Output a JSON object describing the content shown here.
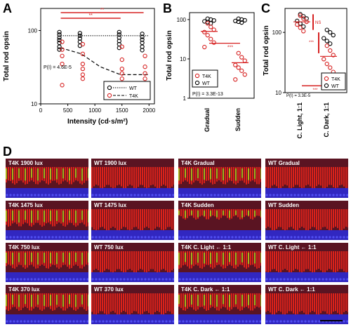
{
  "panels": {
    "a": {
      "letter": "A"
    },
    "b": {
      "letter": "B"
    },
    "c": {
      "letter": "C"
    },
    "d": {
      "letter": "D"
    }
  },
  "chart_data": [
    {
      "id": "A",
      "type": "scatter",
      "ylabel": "Total rod opsin",
      "xlabel": "Intensity (cd·s/m²)",
      "xticks": [
        0,
        500,
        1000,
        1500,
        2000
      ],
      "yticks": [
        "10",
        "100"
      ],
      "log_y": true,
      "xlim": [
        0,
        2100
      ],
      "ylim": [
        10,
        200
      ],
      "annotation": "P(I) = 4.6E-5",
      "sig_labels": [
        "**",
        "**"
      ],
      "legend": [
        {
          "name": "WT",
          "marker": "open-black",
          "line": "dotted"
        },
        {
          "name": "T4K",
          "marker": "open-red",
          "line": "dashed"
        }
      ],
      "series": [
        {
          "name": "WT",
          "x": [
            370,
            370,
            370,
            370,
            370,
            370,
            370,
            750,
            750,
            750,
            750,
            750,
            1475,
            1475,
            1475,
            1475,
            1475,
            1475,
            1900,
            1900,
            1900,
            1900,
            1900,
            1900
          ],
          "y": [
            95,
            88,
            80,
            74,
            68,
            60,
            55,
            92,
            85,
            78,
            70,
            62,
            95,
            88,
            80,
            72,
            65,
            58,
            90,
            82,
            75,
            68,
            60,
            54
          ]
        },
        {
          "name": "T4K",
          "x": [
            370,
            370,
            370,
            370,
            370,
            750,
            750,
            750,
            750,
            750,
            750,
            1475,
            1475,
            1475,
            1475,
            1475,
            1475,
            1900,
            1900,
            1900,
            1900,
            1900,
            1900
          ],
          "y": [
            70,
            55,
            45,
            35,
            18,
            65,
            48,
            35,
            30,
            25,
            22,
            60,
            40,
            30,
            26,
            22,
            18,
            45,
            32,
            26,
            22,
            19,
            17
          ]
        }
      ],
      "fit_lines": {
        "WT_level": 85,
        "T4K": [
          [
            370,
            58
          ],
          [
            750,
            48
          ],
          [
            1100,
            32
          ],
          [
            1475,
            25
          ],
          [
            2000,
            25
          ]
        ]
      }
    },
    {
      "id": "B",
      "type": "scatter",
      "ylabel": "Total rod opsin",
      "categories": [
        "Gradual",
        "Sudden"
      ],
      "yticks": [
        "1",
        "10",
        "100"
      ],
      "log_y": true,
      "ylim": [
        1,
        150
      ],
      "annotation": "P(I) = 3.3E-13",
      "sig_labels": [
        "***"
      ],
      "legend": [
        {
          "name": "T4K",
          "marker": "open-red"
        },
        {
          "name": "WT",
          "marker": "open-black"
        }
      ],
      "series": [
        {
          "name": "WT",
          "category": [
            "Gradual",
            "Gradual",
            "Gradual",
            "Gradual",
            "Gradual",
            "Gradual",
            "Sudden",
            "Sudden",
            "Sudden",
            "Sudden",
            "Sudden",
            "Sudden"
          ],
          "values": [
            105,
            100,
            95,
            90,
            86,
            80,
            105,
            100,
            96,
            92,
            88,
            84
          ]
        },
        {
          "name": "T4K",
          "category": [
            "Gradual",
            "Gradual",
            "Gradual",
            "Gradual",
            "Gradual",
            "Gradual",
            "Gradual",
            "Gradual",
            "Sudden",
            "Sudden",
            "Sudden",
            "Sudden",
            "Sudden",
            "Sudden",
            "Sudden",
            "Sudden"
          ],
          "values": [
            80,
            65,
            55,
            48,
            40,
            32,
            26,
            20,
            14,
            11,
            9,
            7,
            6,
            5,
            4,
            3
          ]
        }
      ],
      "mean_lines": {
        "Gradual": 50,
        "Sudden": 8
      }
    },
    {
      "id": "C",
      "type": "scatter",
      "ylabel": "Total rod opsin",
      "categories": [
        "C. Light, 1:1",
        "C. Dark, 1:1"
      ],
      "yticks": [
        "10",
        "100"
      ],
      "log_y": true,
      "ylim": [
        10,
        250
      ],
      "annotation": "P(I) = 3.3E-5",
      "sig_labels": [
        "NS",
        "***",
        "***"
      ],
      "legend": [
        {
          "name": "T4K",
          "marker": "open-red"
        },
        {
          "name": "WT",
          "marker": "open-black"
        }
      ],
      "series": [
        {
          "name": "WT",
          "category": [
            "C. Light, 1:1",
            "C. Light, 1:1",
            "C. Light, 1:1",
            "C. Light, 1:1",
            "C. Light, 1:1",
            "C. Light, 1:1",
            "C. Dark, 1:1",
            "C. Dark, 1:1",
            "C. Dark, 1:1",
            "C. Dark, 1:1",
            "C. Dark, 1:1",
            "C. Dark, 1:1"
          ],
          "values": [
            200,
            185,
            170,
            155,
            140,
            125,
            110,
            100,
            90,
            80,
            72,
            65
          ]
        },
        {
          "name": "T4K",
          "category": [
            "C. Light, 1:1",
            "C. Light, 1:1",
            "C. Light, 1:1",
            "C. Light, 1:1",
            "C. Light, 1:1",
            "C. Light, 1:1",
            "C. Dark, 1:1",
            "C. Dark, 1:1",
            "C. Dark, 1:1",
            "C. Dark, 1:1",
            "C. Dark, 1:1",
            "C. Dark, 1:1",
            "C. Dark, 1:1",
            "C. Dark, 1:1"
          ],
          "values": [
            190,
            170,
            150,
            135,
            120,
            105,
            60,
            50,
            42,
            36,
            30,
            26,
            22,
            18
          ]
        }
      ],
      "mean_lines": {
        "C. Light, 1:1": 150,
        "C. Dark, 1:1": 40
      }
    }
  ],
  "grid": {
    "rows": [
      [
        {
          "label": "T4K 1900 lux",
          "style": "t4k"
        },
        {
          "label": "WT 1900 lux",
          "style": "wt"
        },
        {
          "label": "T4K Gradual",
          "style": "t4k"
        },
        {
          "label": "WT Gradual",
          "style": "wt"
        }
      ],
      [
        {
          "label": "T4K 1475 lux",
          "style": "t4k"
        },
        {
          "label": "WT 1475 lux",
          "style": "wt"
        },
        {
          "label": "T4K Sudden",
          "style": "t4k-low"
        },
        {
          "label": "WT Sudden",
          "style": "wt"
        }
      ],
      [
        {
          "label": "T4K 750 lux",
          "style": "t4k"
        },
        {
          "label": "WT 750 lux",
          "style": "wt"
        },
        {
          "label": "T4K C. Light ← 1:1",
          "style": "t4k"
        },
        {
          "label": "WT C. Light ← 1:1",
          "style": "wt"
        }
      ],
      [
        {
          "label": "T4K 370 lux",
          "style": "t4k"
        },
        {
          "label": "WT 370 lux",
          "style": "wt"
        },
        {
          "label": "T4K C. Dark ← 1:1",
          "style": "t4k"
        },
        {
          "label": "WT C. Dark ← 1:1",
          "style": "wt"
        }
      ]
    ]
  },
  "colors": {
    "t4k": "#d62020",
    "wt": "#000000",
    "retina_red": "#e2231a",
    "retina_blue": "#2a2adc",
    "retina_green": "#9be51a",
    "bg_dark": "#5a1422"
  }
}
